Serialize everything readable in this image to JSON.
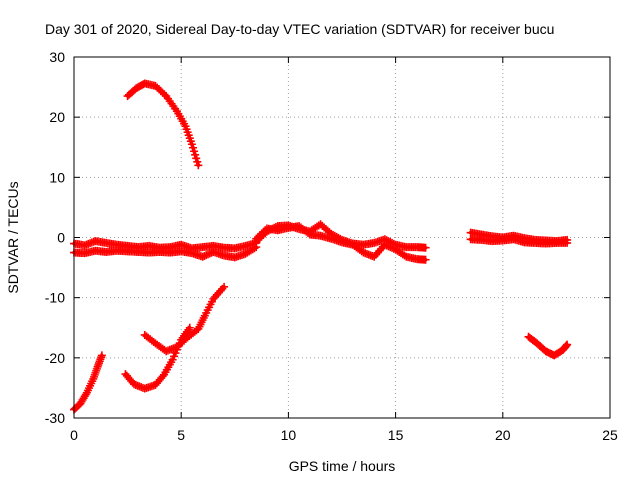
{
  "chart_data": {
    "type": "scatter",
    "title": "Day 301 of 2020, Sidereal Day-to-day VTEC variation (SDTVAR) for receiver bucu",
    "xlabel": "GPS time / hours",
    "ylabel": "SDTVAR / TECUs",
    "xlim": [
      0,
      25
    ],
    "ylim": [
      -30,
      30
    ],
    "x_ticks": [
      0,
      5,
      10,
      15,
      20,
      25
    ],
    "y_ticks": [
      -30,
      -20,
      -10,
      0,
      10,
      20,
      30
    ],
    "x_tick_labels": [
      "0",
      "5",
      "10",
      "15",
      "20",
      "25"
    ],
    "y_tick_labels": [
      "-30",
      "-20",
      "-10",
      "0",
      "10",
      "20",
      "30"
    ],
    "grid": true,
    "legend": "none",
    "series_color": "#ff0000",
    "axis_color": "#000000",
    "grid_color": "#a0a0a0",
    "series": [
      {
        "name": "arc-rising-morning",
        "points": [
          [
            0.0,
            -28.6
          ],
          [
            0.3,
            -27.6
          ],
          [
            0.6,
            -25.8
          ],
          [
            0.9,
            -23.5
          ],
          [
            1.1,
            -21.5
          ],
          [
            1.3,
            -19.6
          ]
        ]
      },
      {
        "name": "arc-high-peak",
        "points": [
          [
            2.5,
            23.5
          ],
          [
            2.9,
            24.8
          ],
          [
            3.3,
            25.6
          ],
          [
            3.8,
            25.2
          ],
          [
            4.3,
            23.5
          ],
          [
            4.8,
            21.0
          ],
          [
            5.2,
            18.5
          ],
          [
            5.5,
            15.5
          ],
          [
            5.8,
            12.0
          ]
        ]
      },
      {
        "name": "arc-low-trough",
        "points": [
          [
            2.4,
            -22.7
          ],
          [
            2.8,
            -24.4
          ],
          [
            3.3,
            -25.1
          ],
          [
            3.8,
            -24.5
          ],
          [
            4.2,
            -22.8
          ],
          [
            4.6,
            -20.3
          ],
          [
            5.0,
            -17.0
          ],
          [
            5.4,
            -15.0
          ]
        ]
      },
      {
        "name": "arc-rising-mid",
        "points": [
          [
            3.3,
            -16.2
          ],
          [
            3.8,
            -17.6
          ],
          [
            4.3,
            -18.9
          ],
          [
            4.8,
            -18.2
          ],
          [
            5.3,
            -16.6
          ],
          [
            5.8,
            -15.2
          ],
          [
            6.1,
            -13.0
          ],
          [
            6.5,
            -10.2
          ],
          [
            7.0,
            -8.2
          ]
        ]
      },
      {
        "name": "band-upper-left",
        "points": [
          [
            0.0,
            -1.0
          ],
          [
            0.5,
            -1.3
          ],
          [
            1.0,
            -0.6
          ],
          [
            1.5,
            -0.9
          ],
          [
            2.0,
            -1.2
          ],
          [
            2.5,
            -1.4
          ],
          [
            3.0,
            -1.6
          ],
          [
            3.5,
            -1.4
          ],
          [
            4.0,
            -1.7
          ],
          [
            4.5,
            -1.6
          ],
          [
            5.0,
            -1.2
          ],
          [
            5.5,
            -1.8
          ],
          [
            6.0,
            -1.6
          ],
          [
            6.5,
            -1.4
          ],
          [
            7.0,
            -1.7
          ],
          [
            7.5,
            -1.8
          ],
          [
            8.0,
            -1.4
          ],
          [
            8.5,
            -0.9
          ]
        ]
      },
      {
        "name": "band-lower-left",
        "points": [
          [
            0.0,
            -2.5
          ],
          [
            0.5,
            -2.6
          ],
          [
            1.0,
            -2.2
          ],
          [
            1.5,
            -2.4
          ],
          [
            2.0,
            -2.2
          ],
          [
            2.5,
            -2.3
          ],
          [
            3.0,
            -2.4
          ],
          [
            3.5,
            -2.5
          ],
          [
            4.0,
            -2.4
          ],
          [
            4.5,
            -2.5
          ],
          [
            5.0,
            -2.3
          ],
          [
            5.5,
            -2.6
          ],
          [
            6.0,
            -3.2
          ],
          [
            6.5,
            -2.4
          ],
          [
            7.0,
            -3.0
          ],
          [
            7.5,
            -3.3
          ],
          [
            8.0,
            -2.7
          ],
          [
            8.5,
            -1.6
          ]
        ]
      },
      {
        "name": "band-middle",
        "points": [
          [
            8.5,
            -0.7
          ],
          [
            9.0,
            1.0
          ],
          [
            9.5,
            1.9
          ],
          [
            10.0,
            2.0
          ],
          [
            10.5,
            1.4
          ],
          [
            11.0,
            1.0
          ],
          [
            11.5,
            2.2
          ],
          [
            12.0,
            0.6
          ],
          [
            12.5,
            -0.4
          ],
          [
            13.0,
            -1.0
          ],
          [
            13.5,
            -1.2
          ],
          [
            14.0,
            -0.9
          ],
          [
            14.5,
            -0.3
          ],
          [
            15.0,
            -1.2
          ],
          [
            15.5,
            -1.6
          ],
          [
            16.0,
            -1.6
          ],
          [
            16.4,
            -1.7
          ]
        ]
      },
      {
        "name": "band-middle-lower",
        "points": [
          [
            8.5,
            -0.2
          ],
          [
            9.0,
            1.5
          ],
          [
            9.5,
            1.2
          ],
          [
            10.0,
            1.6
          ],
          [
            10.5,
            1.9
          ],
          [
            11.0,
            0.5
          ],
          [
            11.5,
            0.3
          ],
          [
            12.0,
            -0.2
          ],
          [
            12.5,
            -0.8
          ],
          [
            13.0,
            -1.2
          ],
          [
            13.5,
            -2.5
          ],
          [
            14.0,
            -3.2
          ],
          [
            14.5,
            -1.2
          ],
          [
            15.0,
            -2.0
          ],
          [
            15.5,
            -3.2
          ],
          [
            16.0,
            -3.6
          ],
          [
            16.4,
            -3.7
          ]
        ]
      },
      {
        "name": "band-right-upper",
        "points": [
          [
            18.5,
            0.8
          ],
          [
            19.0,
            0.5
          ],
          [
            19.5,
            0.2
          ],
          [
            20.0,
            0.0
          ],
          [
            20.5,
            0.3
          ],
          [
            21.0,
            -0.1
          ],
          [
            21.5,
            -0.4
          ],
          [
            22.0,
            -0.5
          ],
          [
            22.5,
            -0.6
          ],
          [
            23.0,
            -0.4
          ]
        ]
      },
      {
        "name": "band-right-lower",
        "points": [
          [
            18.5,
            -0.3
          ],
          [
            19.0,
            -0.4
          ],
          [
            19.5,
            -0.6
          ],
          [
            20.0,
            -0.5
          ],
          [
            20.5,
            -0.3
          ],
          [
            21.0,
            -0.8
          ],
          [
            21.5,
            -0.9
          ],
          [
            22.0,
            -1.0
          ],
          [
            22.5,
            -0.9
          ],
          [
            23.0,
            -0.9
          ]
        ]
      },
      {
        "name": "arc-right-dip",
        "points": [
          [
            21.2,
            -16.5
          ],
          [
            21.6,
            -17.6
          ],
          [
            22.0,
            -18.9
          ],
          [
            22.4,
            -19.6
          ],
          [
            22.8,
            -18.7
          ],
          [
            23.0,
            -17.8
          ]
        ]
      }
    ]
  }
}
